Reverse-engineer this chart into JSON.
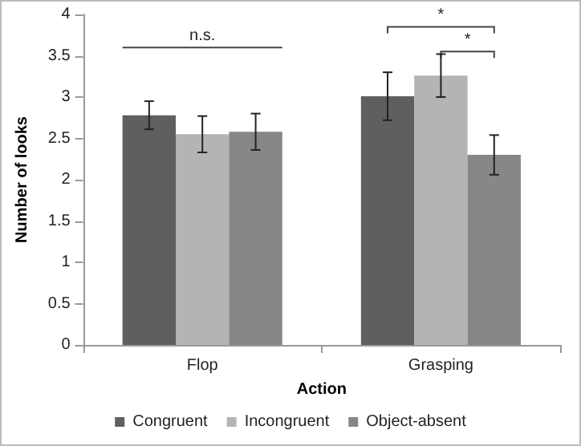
{
  "chart_data": {
    "type": "bar",
    "xlabel": "Action",
    "ylabel": "Number of looks",
    "categories": [
      "Flop",
      "Grasping"
    ],
    "series": [
      {
        "name": "Congruent",
        "color": "#5f5f5f",
        "values": [
          2.78,
          3.01
        ],
        "errors": [
          0.17,
          0.29
        ]
      },
      {
        "name": "Incongruent",
        "color": "#b4b4b4",
        "values": [
          2.55,
          3.26
        ],
        "errors": [
          0.22,
          0.26
        ]
      },
      {
        "name": "Object-absent",
        "color": "#878787",
        "values": [
          2.58,
          2.3
        ],
        "errors": [
          0.22,
          0.24
        ]
      }
    ],
    "ylim": [
      0,
      4
    ],
    "yticks": [
      0,
      0.5,
      1,
      1.5,
      2,
      2.5,
      3,
      3.5,
      4
    ],
    "grid": false,
    "legend": "bottom",
    "annotations": [
      "n.s.",
      "*",
      "*"
    ]
  }
}
